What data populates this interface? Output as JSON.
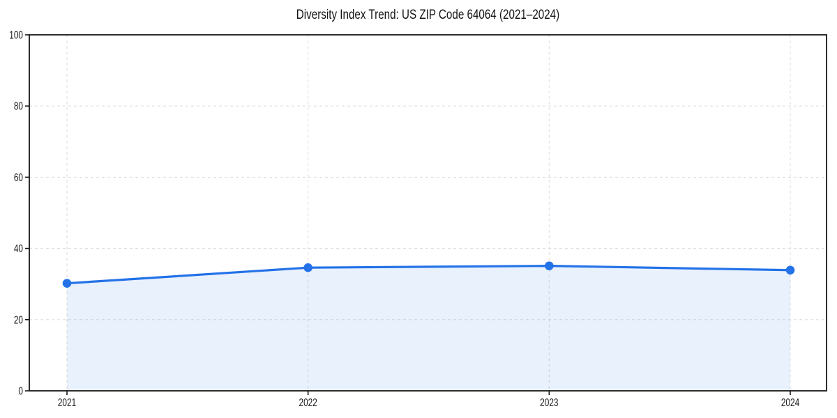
{
  "chart_data": {
    "type": "area",
    "title": "Diversity Index Trend: US ZIP Code 64064 (2021–2024)",
    "x": [
      "2021",
      "2022",
      "2023",
      "2024"
    ],
    "series": [
      {
        "name": "Diversity Index",
        "values": [
          30.2,
          34.6,
          35.1,
          33.9
        ]
      }
    ],
    "xlabel": "",
    "ylabel": "",
    "ylim": [
      0,
      100
    ],
    "yticks": [
      0,
      20,
      40,
      60,
      80,
      100
    ],
    "grid": true,
    "grid_style": "dashed",
    "legend": "none",
    "marker": "circle",
    "colors": {
      "line": "#2372e8",
      "marker": "#2372e8",
      "fill": "rgba(35,114,232,0.10)",
      "grid": "#dedede",
      "spine": "#161616",
      "text": "#1a1a1a"
    }
  }
}
